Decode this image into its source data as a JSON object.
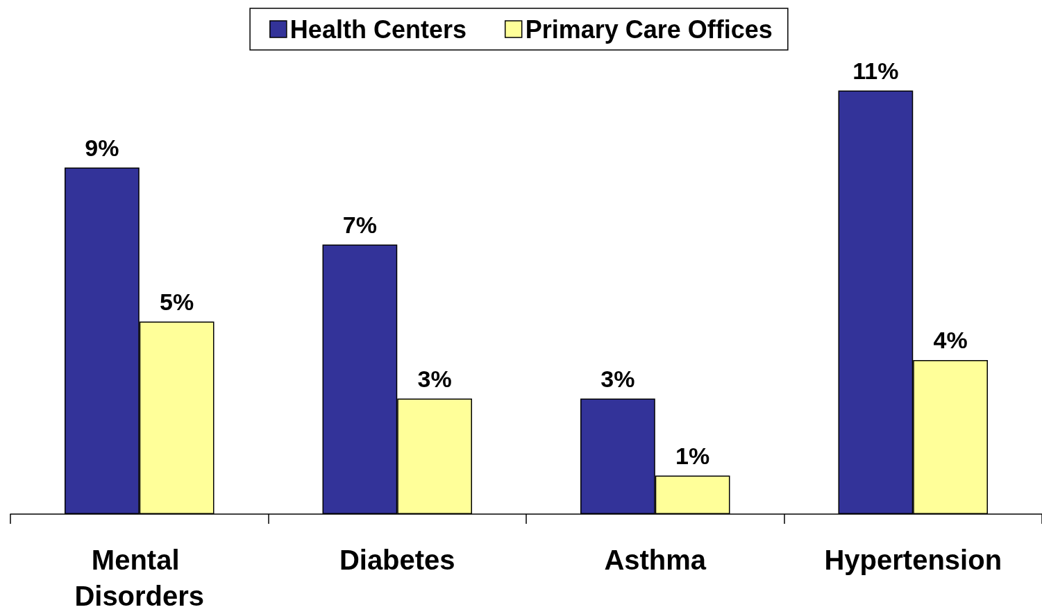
{
  "chart_data": {
    "type": "bar",
    "categories": [
      "Mental Disorders",
      "Diabetes",
      "Asthma",
      "Hypertension"
    ],
    "series": [
      {
        "name": "Health Centers",
        "color": "#333399",
        "values": [
          9,
          7,
          3,
          11
        ],
        "value_labels": [
          "9%",
          "7%",
          "3%",
          "11%"
        ]
      },
      {
        "name": "Primary Care Offices",
        "color": "#ffff99",
        "values": [
          5,
          3,
          1,
          4
        ],
        "value_labels": [
          "5%",
          "3%",
          "1%",
          "4%"
        ]
      }
    ],
    "legend": "top",
    "grid": false
  }
}
